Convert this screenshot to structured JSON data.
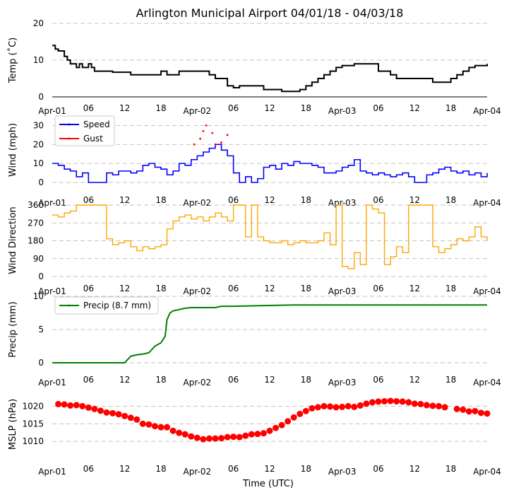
{
  "title": "Arlington Municipal Airport 04/01/18 - 04/03/18",
  "xlabel": "Time (UTC)",
  "x_ticks": [
    "Apr-01",
    "06",
    "12",
    "18",
    "Apr-02",
    "06",
    "12",
    "18",
    "Apr-03",
    "06",
    "12",
    "18",
    "Apr-04"
  ],
  "x_tick_hours": [
    0,
    6,
    12,
    18,
    24,
    30,
    36,
    42,
    48,
    54,
    60,
    66,
    72
  ],
  "x_range_hours": [
    0,
    72
  ],
  "colors": {
    "temp": "#000000",
    "speed": "#0000ff",
    "gust": "#ff0000",
    "direction": "#ffa500",
    "precip": "#008000",
    "mslp": "#ff0000"
  },
  "chart_data": [
    {
      "type": "line",
      "name": "temperature",
      "ylabel": "Temp ($^\\circ$C)",
      "ylabel_display": "Temp (˚C)",
      "ylim": [
        0,
        20
      ],
      "yticks": [
        "0",
        "10",
        "20"
      ],
      "ytick_values": [
        0,
        10,
        20
      ],
      "x_hours": [
        0,
        0.5,
        1,
        2,
        2.5,
        3,
        4,
        4.5,
        5,
        6,
        6.5,
        7,
        9,
        10,
        12,
        13,
        14,
        17,
        18,
        19,
        20,
        21,
        23,
        25,
        26,
        27,
        29,
        30,
        31,
        32,
        34,
        35,
        37,
        38,
        41,
        42,
        43,
        44,
        45,
        46,
        47,
        48,
        50,
        52,
        54,
        55,
        56,
        57,
        60,
        63,
        64,
        65,
        66,
        67,
        68,
        69,
        70,
        72
      ],
      "values": [
        14,
        13,
        12.5,
        11,
        10,
        9,
        8,
        9,
        8,
        9,
        8,
        7,
        7,
        6.7,
        6.7,
        6,
        6,
        6,
        7,
        6,
        6,
        7,
        7,
        7,
        6,
        5,
        3,
        2.5,
        3,
        3,
        3,
        2,
        2,
        1.5,
        2,
        3,
        4,
        5,
        6,
        7,
        8,
        8.5,
        9,
        9,
        7,
        7,
        6,
        5,
        5,
        4,
        4,
        4,
        5,
        6,
        7,
        8,
        8.5,
        9
      ]
    },
    {
      "type": "line",
      "name": "wind",
      "ylabel": "Wind (mph)",
      "ylim": [
        0,
        32
      ],
      "yticks": [
        "0",
        "10",
        "20",
        "30"
      ],
      "ytick_values": [
        0,
        10,
        20,
        30
      ],
      "legend": [
        "Speed",
        "Gust"
      ],
      "series": [
        {
          "name": "Speed",
          "x_hours": [
            0,
            1,
            2,
            3,
            4,
            5,
            6,
            7,
            8,
            9,
            10,
            11,
            12,
            13,
            14,
            15,
            16,
            17,
            18,
            19,
            20,
            21,
            22,
            23,
            24,
            25,
            26,
            27,
            28,
            29,
            30,
            31,
            32,
            33,
            34,
            35,
            36,
            37,
            38,
            39,
            40,
            41,
            42,
            43,
            44,
            45,
            46,
            47,
            48,
            49,
            50,
            51,
            52,
            53,
            54,
            55,
            56,
            57,
            58,
            59,
            60,
            61,
            62,
            63,
            64,
            65,
            66,
            67,
            68,
            69,
            70,
            71,
            72
          ],
          "values": [
            10,
            9,
            7,
            6,
            3,
            5,
            0,
            0,
            0,
            5,
            4,
            6,
            6,
            5,
            6,
            9,
            10,
            8,
            7,
            4,
            6,
            10,
            9,
            12,
            14,
            16,
            18,
            20,
            17,
            14,
            5,
            0,
            3,
            0,
            2,
            8,
            9,
            7,
            10,
            9,
            11,
            10,
            10,
            9,
            8,
            5,
            5,
            6,
            8,
            9,
            12,
            6,
            5,
            4,
            5,
            4,
            3,
            4,
            5,
            3,
            0,
            0,
            4,
            5,
            7,
            8,
            6,
            5,
            6,
            4,
            5,
            3,
            5
          ]
        },
        {
          "name": "Gust",
          "x_hours": [
            23.5,
            24.5,
            25,
            25.5,
            26.5,
            27,
            28,
            29
          ],
          "values": [
            20,
            23,
            27,
            30,
            26,
            20,
            21,
            25
          ]
        }
      ]
    },
    {
      "type": "scatter",
      "name": "wind_direction",
      "ylabel": "Wind Direction",
      "ylim": [
        0,
        360
      ],
      "yticks": [
        "0",
        "90",
        "180",
        "270",
        "360"
      ],
      "ytick_values": [
        0,
        90,
        180,
        270,
        360
      ],
      "x_hours": [
        0,
        1,
        2,
        3,
        4,
        5,
        6,
        7,
        8,
        9,
        10,
        11,
        12,
        13,
        14,
        15,
        16,
        17,
        18,
        19,
        20,
        21,
        22,
        23,
        24,
        25,
        26,
        27,
        28,
        29,
        30,
        31,
        32,
        33,
        34,
        35,
        36,
        37,
        38,
        39,
        40,
        41,
        42,
        43,
        44,
        45,
        46,
        47,
        48,
        49,
        50,
        51,
        52,
        53,
        54,
        55,
        56,
        57,
        58,
        59,
        60,
        61,
        62,
        63,
        64,
        65,
        66,
        67,
        68,
        69,
        70,
        71,
        72
      ],
      "values": [
        310,
        300,
        320,
        330,
        360,
        360,
        360,
        360,
        360,
        190,
        160,
        170,
        180,
        150,
        130,
        150,
        140,
        150,
        160,
        240,
        280,
        300,
        310,
        290,
        300,
        280,
        300,
        320,
        300,
        280,
        360,
        360,
        200,
        360,
        200,
        180,
        170,
        170,
        180,
        160,
        170,
        180,
        170,
        170,
        180,
        220,
        160,
        360,
        50,
        40,
        120,
        60,
        360,
        340,
        320,
        60,
        100,
        150,
        120,
        360,
        360,
        360,
        360,
        150,
        120,
        140,
        160,
        190,
        180,
        200,
        250,
        200,
        180
      ]
    },
    {
      "type": "line",
      "name": "precip",
      "ylabel": "Precip (mm)",
      "ylim": [
        0,
        10
      ],
      "yticks": [
        "0",
        "5",
        "10"
      ],
      "ytick_values": [
        0,
        5,
        10
      ],
      "legend": [
        "Precip (8.7 mm)"
      ],
      "x_hours": [
        0,
        12,
        13,
        14,
        15,
        16,
        17,
        18,
        18.7,
        19,
        19.5,
        20,
        21,
        22,
        23,
        24,
        27,
        28,
        30,
        35,
        40,
        45,
        50,
        55,
        60,
        65,
        72
      ],
      "values": [
        0,
        0,
        1,
        1.2,
        1.3,
        1.5,
        2.5,
        3,
        4,
        6.5,
        7.5,
        7.8,
        8.0,
        8.2,
        8.3,
        8.3,
        8.3,
        8.5,
        8.5,
        8.6,
        8.7,
        8.7,
        8.7,
        8.7,
        8.7,
        8.7,
        8.7
      ]
    },
    {
      "type": "scatter",
      "name": "mslp",
      "ylabel": "MSLP (hPa)",
      "ylim": [
        1006,
        1023.5
      ],
      "yticks": [
        "1010",
        "1015",
        "1020"
      ],
      "ytick_values": [
        1010,
        1015,
        1020
      ],
      "x_hours": [
        1,
        2,
        3,
        4,
        5,
        6,
        7,
        8,
        9,
        10,
        11,
        12,
        13,
        14,
        15,
        16,
        17,
        18,
        19,
        20,
        21,
        22,
        23,
        24,
        25,
        26,
        27,
        28,
        29,
        30,
        31,
        32,
        33,
        34,
        35,
        36,
        37,
        38,
        39,
        40,
        41,
        42,
        43,
        44,
        45,
        46,
        47,
        48,
        49,
        50,
        51,
        52,
        53,
        54,
        55,
        56,
        57,
        58,
        59,
        60,
        61,
        62,
        63,
        64,
        65,
        67,
        68,
        69,
        70,
        71,
        72
      ],
      "values": [
        1020.6,
        1020.5,
        1020.2,
        1020.3,
        1020.0,
        1019.6,
        1019.2,
        1018.7,
        1018.2,
        1018.0,
        1017.7,
        1017.2,
        1016.7,
        1016.2,
        1015.0,
        1014.8,
        1014.3,
        1014.0,
        1014.0,
        1013.0,
        1012.4,
        1012.0,
        1011.4,
        1011.0,
        1010.6,
        1010.8,
        1010.8,
        1010.9,
        1011.2,
        1011.3,
        1011.2,
        1011.6,
        1012.0,
        1012.1,
        1012.3,
        1013.0,
        1013.8,
        1014.6,
        1015.7,
        1016.8,
        1017.8,
        1018.6,
        1019.4,
        1019.7,
        1020.0,
        1019.9,
        1019.7,
        1019.8,
        1020.0,
        1019.8,
        1020.2,
        1020.7,
        1021.1,
        1021.3,
        1021.4,
        1021.5,
        1021.4,
        1021.3,
        1021.1,
        1020.7,
        1020.6,
        1020.3,
        1020.1,
        1020.0,
        1019.7,
        1019.2,
        1019.0,
        1018.5,
        1018.6,
        1018.1,
        1017.9
      ]
    }
  ]
}
